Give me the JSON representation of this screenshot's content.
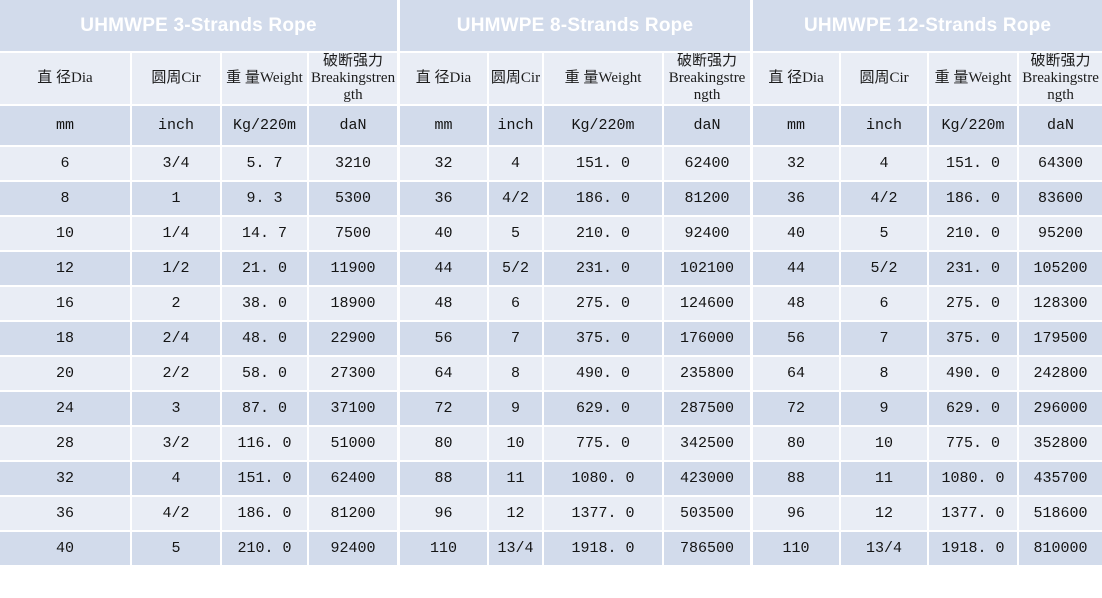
{
  "colors": {
    "banner_blue": "#5b9bd5",
    "banner_text": "#ffffff",
    "band_dark": "#d2dbeb",
    "band_light": "#e9edf5",
    "divider_white": "#ffffff",
    "cell_text": "#141414"
  },
  "sections": [
    {
      "title": "UHMWPE 3-Strands Rope",
      "columns": [
        "直 径Dia",
        "圆周Cir",
        "重 量Weight",
        "破断强力Breakingstrength"
      ],
      "units": [
        "mm",
        "inch",
        "Kg/220m",
        "daN"
      ],
      "rows": [
        [
          "6",
          "3/4",
          "5. 7",
          "3210"
        ],
        [
          "8",
          "1",
          "9. 3",
          "5300"
        ],
        [
          "10",
          "1/4",
          "14. 7",
          "7500"
        ],
        [
          "12",
          "1/2",
          "21. 0",
          "11900"
        ],
        [
          "16",
          "2",
          "38. 0",
          "18900"
        ],
        [
          "18",
          "2/4",
          "48. 0",
          "22900"
        ],
        [
          "20",
          "2/2",
          "58. 0",
          "27300"
        ],
        [
          "24",
          "3",
          "87. 0",
          "37100"
        ],
        [
          "28",
          "3/2",
          "116. 0",
          "51000"
        ],
        [
          "32",
          "4",
          "151. 0",
          "62400"
        ],
        [
          "36",
          "4/2",
          "186. 0",
          "81200"
        ],
        [
          "40",
          "5",
          "210. 0",
          "92400"
        ]
      ]
    },
    {
      "title": "UHMWPE 8-Strands Rope",
      "columns": [
        "直 径Dia",
        "圆周Cir",
        "重 量Weight",
        "破断强力Breakingstrength"
      ],
      "units": [
        "mm",
        "inch",
        "Kg/220m",
        "daN"
      ],
      "rows": [
        [
          "32",
          "4",
          "151. 0",
          "62400"
        ],
        [
          "36",
          "4/2",
          "186. 0",
          "81200"
        ],
        [
          "40",
          "5",
          "210. 0",
          "92400"
        ],
        [
          "44",
          "5/2",
          "231. 0",
          "102100"
        ],
        [
          "48",
          "6",
          "275. 0",
          "124600"
        ],
        [
          "56",
          "7",
          "375. 0",
          "176000"
        ],
        [
          "64",
          "8",
          "490. 0",
          "235800"
        ],
        [
          "72",
          "9",
          "629. 0",
          "287500"
        ],
        [
          "80",
          "10",
          "775. 0",
          "342500"
        ],
        [
          "88",
          "11",
          "1080. 0",
          "423000"
        ],
        [
          "96",
          "12",
          "1377. 0",
          "503500"
        ],
        [
          "110",
          "13/4",
          "1918. 0",
          "786500"
        ]
      ]
    },
    {
      "title": "UHMWPE 12-Strands Rope",
      "columns": [
        "直 径Dia",
        "圆周Cir",
        "重 量Weight",
        "破断强力Breakingstrength"
      ],
      "units": [
        "mm",
        "inch",
        "Kg/220m",
        "daN"
      ],
      "rows": [
        [
          "32",
          "4",
          "151. 0",
          "64300"
        ],
        [
          "36",
          "4/2",
          "186. 0",
          "83600"
        ],
        [
          "40",
          "5",
          "210. 0",
          "95200"
        ],
        [
          "44",
          "5/2",
          "231. 0",
          "105200"
        ],
        [
          "48",
          "6",
          "275. 0",
          "128300"
        ],
        [
          "56",
          "7",
          "375. 0",
          "179500"
        ],
        [
          "64",
          "8",
          "490. 0",
          "242800"
        ],
        [
          "72",
          "9",
          "629. 0",
          "296000"
        ],
        [
          "80",
          "10",
          "775. 0",
          "352800"
        ],
        [
          "88",
          "11",
          "1080. 0",
          "435700"
        ],
        [
          "96",
          "12",
          "1377. 0",
          "518600"
        ],
        [
          "110",
          "13/4",
          "1918. 0",
          "810000"
        ]
      ]
    }
  ]
}
